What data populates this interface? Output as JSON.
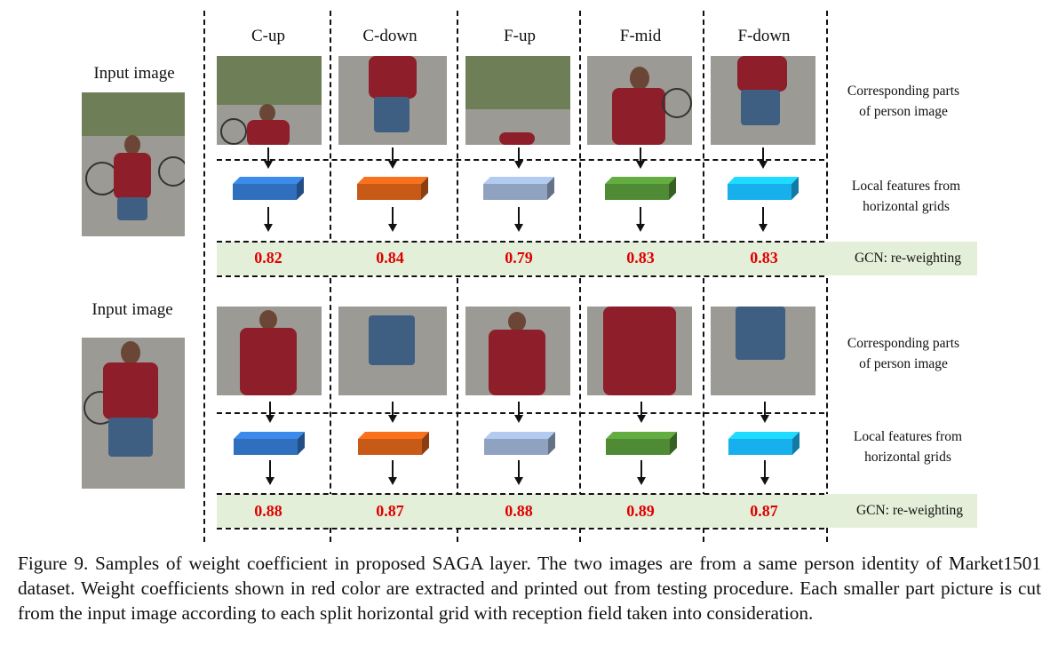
{
  "columns": [
    "C-up",
    "C-down",
    "F-up",
    "F-mid",
    "F-down"
  ],
  "rows": [
    {
      "input_label": "Input  image",
      "parts_label": [
        "Corresponding parts",
        "of person image"
      ],
      "features_label": [
        "Local features from",
        "horizontal grids"
      ],
      "gcn_label": "GCN: re-weighting",
      "scores": [
        "0.82",
        "0.84",
        "0.79",
        "0.83",
        "0.83"
      ]
    },
    {
      "input_label": "Input  image",
      "parts_label": [
        "Corresponding parts",
        "of person image"
      ],
      "features_label": [
        "Local features from",
        "horizontal grids"
      ],
      "gcn_label": "GCN: re-weighting",
      "scores": [
        "0.88",
        "0.87",
        "0.88",
        "0.89",
        "0.87"
      ]
    }
  ],
  "cube_colors": [
    "#2f6fbd",
    "#c75a17",
    "#8fa2c0",
    "#4f8a34",
    "#18b0ec"
  ],
  "score_color": "#e00000",
  "caption": "Figure 9. Samples of weight coefficient in proposed SAGA layer. The two images are from a same person identity of Market1501 dataset. Weight coefficients shown in red color are extracted and printed out from testing procedure. Each smaller part picture is cut from the input image according to each split horizontal grid with reception field taken into consideration."
}
